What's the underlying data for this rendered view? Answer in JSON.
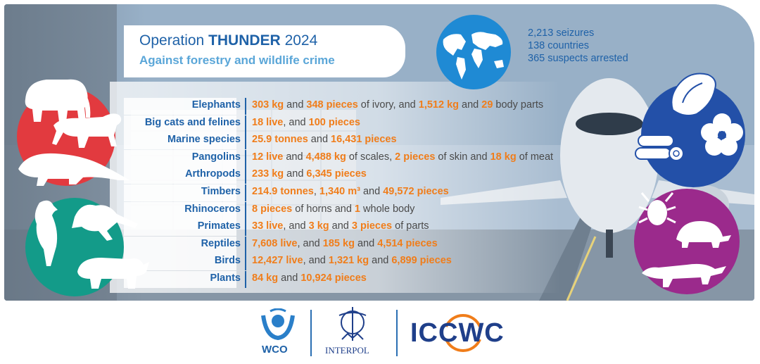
{
  "header": {
    "title_prefix": "Operation ",
    "title_bold": "THUNDER",
    "title_suffix": " 2024",
    "subtitle": "Against forestry and wildlife crime"
  },
  "stats": {
    "seizures": "2,213 seizures",
    "countries": "138 countries",
    "arrests": "365 suspects arrested"
  },
  "rows": [
    {
      "label": "Elephants",
      "parts": [
        [
          "303 kg",
          true
        ],
        [
          " and ",
          false
        ],
        [
          "348 pieces",
          true
        ],
        [
          " of ivory, and ",
          false
        ],
        [
          "1,512 kg",
          true
        ],
        [
          " and ",
          false
        ],
        [
          "29",
          true
        ],
        [
          " body parts",
          false
        ]
      ]
    },
    {
      "label": "Big cats and felines",
      "parts": [
        [
          "18 live",
          true
        ],
        [
          ", and ",
          false
        ],
        [
          "100 pieces",
          true
        ]
      ]
    },
    {
      "label": "Marine species",
      "parts": [
        [
          "25.9 tonnes",
          true
        ],
        [
          " and ",
          false
        ],
        [
          "16,431 pieces",
          true
        ]
      ]
    },
    {
      "label": "Pangolins",
      "parts": [
        [
          "12 live",
          true
        ],
        [
          " and ",
          false
        ],
        [
          "4,488 kg",
          true
        ],
        [
          " of scales, ",
          false
        ],
        [
          "2 pieces",
          true
        ],
        [
          " of skin and ",
          false
        ],
        [
          "18 kg",
          true
        ],
        [
          " of meat",
          false
        ]
      ]
    },
    {
      "label": "Arthropods",
      "parts": [
        [
          "233 kg",
          true
        ],
        [
          " and ",
          false
        ],
        [
          "6,345 pieces",
          true
        ]
      ]
    },
    {
      "label": "Timbers",
      "parts": [
        [
          "214.9 tonnes",
          true
        ],
        [
          ", ",
          false
        ],
        [
          "1,340 m³",
          true
        ],
        [
          " and ",
          false
        ],
        [
          "49,572 pieces",
          true
        ]
      ]
    },
    {
      "label": "Rhinoceros",
      "parts": [
        [
          "8 pieces",
          true
        ],
        [
          " of horns and ",
          false
        ],
        [
          "1",
          true
        ],
        [
          " whole body",
          false
        ]
      ]
    },
    {
      "label": "Primates",
      "parts": [
        [
          "33 live",
          true
        ],
        [
          ", and ",
          false
        ],
        [
          "3 kg",
          true
        ],
        [
          " and ",
          false
        ],
        [
          "3 pieces",
          true
        ],
        [
          " of parts",
          false
        ]
      ]
    },
    {
      "label": "Reptiles",
      "parts": [
        [
          "7,608 live",
          true
        ],
        [
          ", and ",
          false
        ],
        [
          "185 kg",
          true
        ],
        [
          " and ",
          false
        ],
        [
          "4,514 pieces",
          true
        ]
      ]
    },
    {
      "label": "Birds",
      "parts": [
        [
          "12,427 live",
          true
        ],
        [
          ", and ",
          false
        ],
        [
          "1,321 kg",
          true
        ],
        [
          " and ",
          false
        ],
        [
          "6,899 pieces",
          true
        ]
      ]
    },
    {
      "label": "Plants",
      "parts": [
        [
          "84 kg",
          true
        ],
        [
          " and ",
          false
        ],
        [
          "10,924 pieces",
          true
        ]
      ]
    }
  ],
  "logos": {
    "wco": "WCO",
    "interpol": "INTERPOL",
    "iccwc": "ICCWC"
  },
  "colors": {
    "blue": "#1f62a8",
    "light_blue": "#5aa6d8",
    "orange": "#f07d1a",
    "red": "#e23a3f",
    "teal": "#139b89",
    "dark_blue": "#2350a8",
    "purple": "#9b2a8c"
  },
  "icons": {
    "left_top": [
      "elephant-icon",
      "big-cat-icon",
      "pangolin-icon"
    ],
    "left_bottom": [
      "bird-icon",
      "primate-icon",
      "rhinoceros-icon"
    ],
    "right_top": [
      "seashell-icon",
      "timber-logs-icon",
      "flower-icon"
    ],
    "right_bottom": [
      "beetle-icon",
      "turtle-icon",
      "iguana-icon"
    ]
  }
}
